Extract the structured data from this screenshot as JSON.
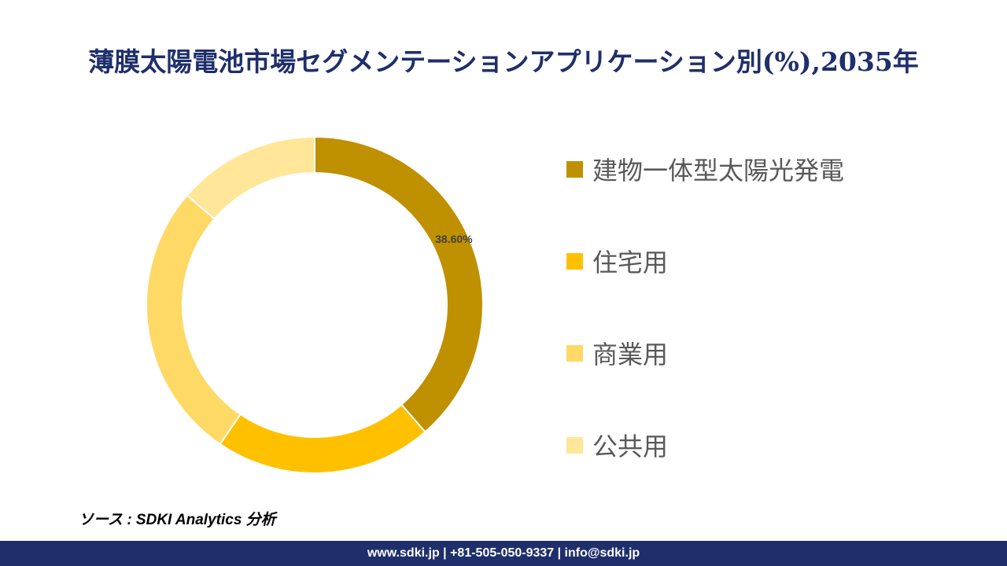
{
  "chart_data": {
    "type": "pie",
    "title": "薄膜太陽電池市場セグメンテーションアプリケーション別(%),2035年",
    "categories": [
      "建物一体型太陽光発電",
      "住宅用",
      "商業用",
      "公共用"
    ],
    "values": [
      38.6,
      20.9,
      26.8,
      13.7
    ],
    "data_labels": [
      "38.60%",
      "",
      "",
      ""
    ],
    "colors": [
      "#bf9000",
      "#ffc000",
      "#ffd966",
      "#ffe699"
    ],
    "legend_position": "right",
    "donut": true
  },
  "source": "ソース : SDKI Analytics 分析",
  "footer": "www.sdki.jp | +81-505-050-9337 | info@sdki.jp"
}
